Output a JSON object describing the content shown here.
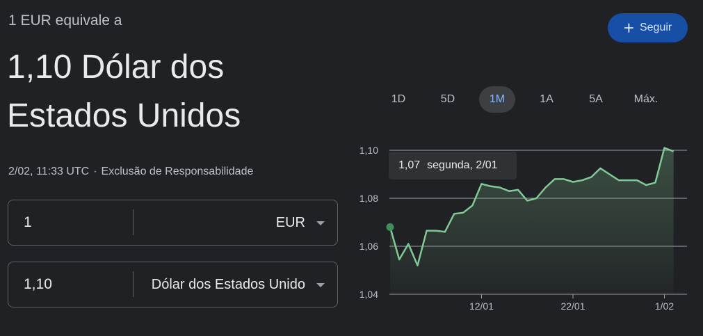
{
  "header": {
    "subtitle": "1 EUR equivale a",
    "headline": "1,10 Dólar dos Estados Unidos",
    "follow_label": "Seguir",
    "follow_icon": "plus-icon"
  },
  "meta": {
    "timestamp": "2/02, 11:33 UTC",
    "separator": "·",
    "disclaimer": "Exclusão de Responsabilidade"
  },
  "converter": {
    "from": {
      "amount": "1",
      "currency": "EUR"
    },
    "to": {
      "amount": "1,10",
      "currency": "Dólar dos Estados Unido"
    }
  },
  "range_tabs": {
    "items": [
      "1D",
      "5D",
      "1M",
      "1A",
      "5A",
      "Máx."
    ],
    "active": "1M"
  },
  "tooltip": {
    "value": "1,07",
    "date": "segunda, 2/01"
  },
  "colors": {
    "background": "#202124",
    "line": "#81c995",
    "active_tab": "#8ab4f8",
    "follow_button": "#174ea6"
  },
  "chart_data": {
    "type": "line",
    "y_ticks": [
      "1,10",
      "1,08",
      "1,06",
      "1,04"
    ],
    "y_tick_values": [
      1.1,
      1.08,
      1.06,
      1.04
    ],
    "ylim": [
      1.04,
      1.1
    ],
    "x_tick_labels": [
      "12/01",
      "22/01",
      "1/02"
    ],
    "x_tick_days": [
      10,
      20,
      30
    ],
    "grid": true,
    "series": [
      {
        "x": [
          0,
          1,
          2,
          3,
          4,
          5,
          6,
          7,
          8,
          9,
          10,
          11,
          12,
          13,
          14,
          15,
          16,
          17,
          18,
          19,
          20,
          21,
          22,
          23,
          24,
          25,
          26,
          27,
          28,
          29,
          30,
          31
        ],
        "values": [
          1.068,
          1.0545,
          1.061,
          1.052,
          1.0665,
          1.0665,
          1.066,
          1.0735,
          1.074,
          1.077,
          1.086,
          1.085,
          1.0845,
          1.083,
          1.0835,
          1.079,
          1.08,
          1.0845,
          1.088,
          1.088,
          1.0868,
          1.0875,
          1.0888,
          1.0925,
          1.09,
          1.0875,
          1.0875,
          1.0875,
          1.0855,
          1.0865,
          1.101,
          1.0995
        ]
      }
    ],
    "highlight_index": 0
  }
}
